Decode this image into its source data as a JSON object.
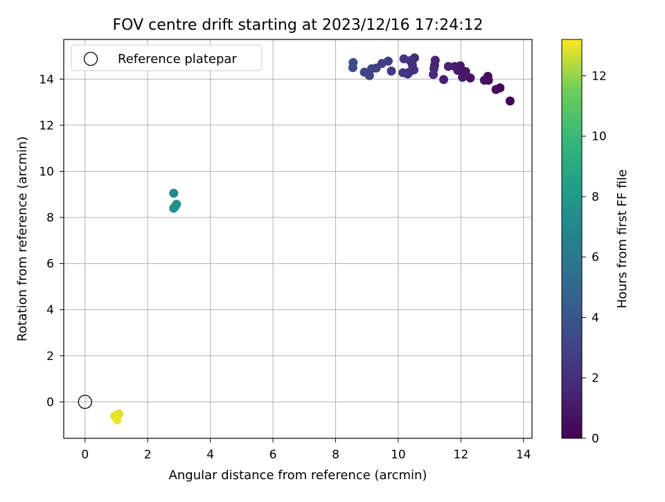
{
  "chart_data": {
    "type": "scatter",
    "title": "FOV centre drift starting at 2023/12/16 17:24:12",
    "xlabel": "Angular distance from reference (arcmin)",
    "ylabel": "Rotation from reference (arcmin)",
    "xlim": [
      -0.68,
      14.27
    ],
    "ylim": [
      -1.58,
      15.72
    ],
    "xticks": [
      0,
      2,
      4,
      6,
      8,
      10,
      12,
      14
    ],
    "yticks": [
      0,
      2,
      4,
      6,
      8,
      10,
      12,
      14
    ],
    "grid": true,
    "legend": {
      "location": "upper-left",
      "entries": [
        {
          "label": "Reference platepar",
          "marker": "hollow-circle"
        }
      ]
    },
    "reference_point": {
      "x": 0,
      "y": 0
    },
    "colorbar": {
      "label": "Hours from first FF file",
      "colormap": "viridis",
      "range": [
        0,
        13.2
      ],
      "ticks": [
        0,
        2,
        4,
        6,
        8,
        10,
        12
      ]
    },
    "points": [
      {
        "x": 13.57,
        "y": 13.05,
        "c": 0.1
      },
      {
        "x": 13.25,
        "y": 13.62,
        "c": 0.3
      },
      {
        "x": 13.12,
        "y": 13.55,
        "c": 0.4
      },
      {
        "x": 12.86,
        "y": 14.12,
        "c": 0.5
      },
      {
        "x": 12.88,
        "y": 13.95,
        "c": 0.6
      },
      {
        "x": 12.75,
        "y": 13.95,
        "c": 0.6
      },
      {
        "x": 12.3,
        "y": 14.05,
        "c": 0.8
      },
      {
        "x": 12.15,
        "y": 14.33,
        "c": 0.9
      },
      {
        "x": 12.05,
        "y": 14.08,
        "c": 1.0
      },
      {
        "x": 11.98,
        "y": 14.58,
        "c": 1.0
      },
      {
        "x": 11.9,
        "y": 14.38,
        "c": 1.1
      },
      {
        "x": 11.8,
        "y": 14.55,
        "c": 1.2
      },
      {
        "x": 11.6,
        "y": 14.55,
        "c": 1.3
      },
      {
        "x": 11.45,
        "y": 13.98,
        "c": 1.4
      },
      {
        "x": 11.18,
        "y": 14.82,
        "c": 1.5
      },
      {
        "x": 11.16,
        "y": 14.6,
        "c": 1.5
      },
      {
        "x": 11.14,
        "y": 14.45,
        "c": 1.6
      },
      {
        "x": 11.12,
        "y": 14.2,
        "c": 1.7
      },
      {
        "x": 10.52,
        "y": 14.92,
        "c": 1.9
      },
      {
        "x": 10.5,
        "y": 14.4,
        "c": 2.0
      },
      {
        "x": 10.45,
        "y": 14.62,
        "c": 2.0
      },
      {
        "x": 10.38,
        "y": 14.8,
        "c": 2.1
      },
      {
        "x": 10.35,
        "y": 14.3,
        "c": 2.2
      },
      {
        "x": 10.3,
        "y": 14.22,
        "c": 2.2
      },
      {
        "x": 10.18,
        "y": 14.88,
        "c": 2.3
      },
      {
        "x": 10.15,
        "y": 14.28,
        "c": 2.4
      },
      {
        "x": 9.78,
        "y": 14.35,
        "c": 2.6
      },
      {
        "x": 9.68,
        "y": 14.78,
        "c": 2.7
      },
      {
        "x": 9.48,
        "y": 14.68,
        "c": 2.8
      },
      {
        "x": 9.3,
        "y": 14.48,
        "c": 2.9
      },
      {
        "x": 9.15,
        "y": 14.45,
        "c": 3.0
      },
      {
        "x": 9.08,
        "y": 14.15,
        "c": 3.1
      },
      {
        "x": 8.92,
        "y": 14.3,
        "c": 3.2
      },
      {
        "x": 8.56,
        "y": 14.72,
        "c": 3.4
      },
      {
        "x": 8.55,
        "y": 14.5,
        "c": 3.5
      },
      {
        "x": 2.83,
        "y": 9.05,
        "c": 7.2
      },
      {
        "x": 2.92,
        "y": 8.57,
        "c": 7.3
      },
      {
        "x": 2.88,
        "y": 8.48,
        "c": 7.3
      },
      {
        "x": 2.83,
        "y": 8.4,
        "c": 7.4
      },
      {
        "x": 1.08,
        "y": -0.52,
        "c": 12.8
      },
      {
        "x": 1.0,
        "y": -0.58,
        "c": 12.9
      },
      {
        "x": 0.95,
        "y": -0.62,
        "c": 12.9
      },
      {
        "x": 1.02,
        "y": -0.78,
        "c": 13.0
      }
    ]
  }
}
